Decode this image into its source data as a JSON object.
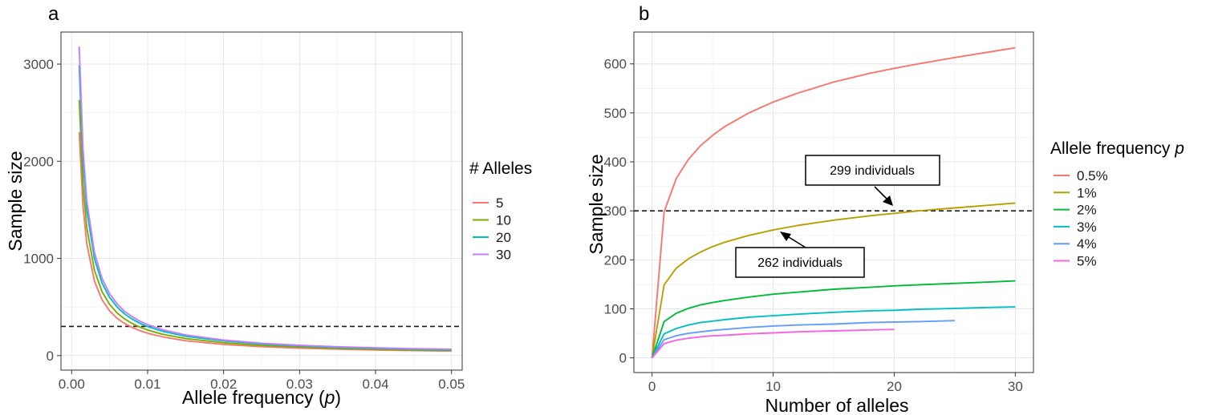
{
  "colors": {
    "a": {
      "5": "#F8766D",
      "10": "#7CAE00",
      "20": "#00BFC4",
      "30": "#C77CFF"
    },
    "b": [
      "#F8766D",
      "#B79F00",
      "#00BA38",
      "#00BFC4",
      "#619CFF",
      "#F564E3"
    ]
  },
  "chart_data": [
    {
      "panel": "a",
      "type": "line",
      "title": "",
      "xlabel": "Allele frequency (p)",
      "ylabel": "Sample size",
      "xlim": [
        -0.0014,
        0.0514
      ],
      "ylim": [
        -150,
        3330
      ],
      "xticks": [
        0.0,
        0.01,
        0.02,
        0.03,
        0.04,
        0.05
      ],
      "xtick_labels": [
        "0.00",
        "0.01",
        "0.02",
        "0.03",
        "0.04",
        "0.05"
      ],
      "yticks": [
        0,
        1000,
        2000,
        3000
      ],
      "ytick_labels": [
        "0",
        "1000",
        "2000",
        "3000"
      ],
      "hline": 300,
      "legend": {
        "title": "# Alleles",
        "position": "right",
        "entries": [
          "5",
          "10",
          "20",
          "30"
        ]
      },
      "x": [
        0.001,
        0.0015,
        0.002,
        0.003,
        0.004,
        0.005,
        0.006,
        0.007,
        0.008,
        0.009,
        0.01,
        0.012,
        0.015,
        0.02,
        0.025,
        0.03,
        0.035,
        0.04,
        0.045,
        0.05
      ],
      "series": [
        {
          "name": "5",
          "values": [
            2300,
            1533,
            1150,
            767,
            575,
            460,
            383,
            329,
            288,
            256,
            230,
            192,
            153,
            115,
            92,
            77,
            66,
            58,
            51,
            46
          ]
        },
        {
          "name": "10",
          "values": [
            2630,
            1753,
            1315,
            877,
            658,
            526,
            438,
            376,
            329,
            292,
            263,
            219,
            175,
            132,
            105,
            88,
            75,
            66,
            58,
            53
          ]
        },
        {
          "name": "20",
          "values": [
            2990,
            1993,
            1495,
            997,
            748,
            598,
            498,
            427,
            374,
            332,
            299,
            249,
            199,
            150,
            120,
            100,
            85,
            75,
            66,
            60
          ]
        },
        {
          "name": "30",
          "values": [
            3180,
            2120,
            1590,
            1060,
            795,
            636,
            530,
            454,
            398,
            353,
            318,
            265,
            212,
            159,
            127,
            106,
            91,
            80,
            71,
            64
          ]
        }
      ]
    },
    {
      "panel": "b",
      "type": "line",
      "title": "",
      "xlabel": "Number of alleles",
      "ylabel": "Sample size",
      "xlim": [
        -1.5,
        31.5
      ],
      "ylim": [
        -30,
        665
      ],
      "xticks": [
        0,
        10,
        20,
        30
      ],
      "xtick_labels": [
        "0",
        "10",
        "20",
        "30"
      ],
      "yticks": [
        0,
        100,
        200,
        300,
        400,
        500,
        600
      ],
      "ytick_labels": [
        "0",
        "100",
        "200",
        "300",
        "400",
        "500",
        "600"
      ],
      "hline": 300,
      "legend": {
        "title": "Allele frequency p",
        "position": "right",
        "entries": [
          "0.5%",
          "1%",
          "2%",
          "3%",
          "4%",
          "5%"
        ]
      },
      "annotations": [
        {
          "text": "299 individuals",
          "points_to": [
            21,
            299
          ]
        },
        {
          "text": "262 individuals",
          "points_to": [
            10,
            262
          ]
        }
      ],
      "series": [
        {
          "name": "0.5%",
          "x": [
            0,
            1,
            2,
            3,
            4,
            5,
            6,
            8,
            10,
            12,
            15,
            18,
            20,
            22,
            25,
            28,
            30
          ],
          "values": [
            0,
            298,
            366,
            405,
            433,
            454,
            472,
            500,
            522,
            540,
            563,
            581,
            591,
            600,
            613,
            625,
            633
          ]
        },
        {
          "name": "1%",
          "x": [
            0,
            1,
            2,
            3,
            4,
            5,
            6,
            8,
            10,
            12,
            15,
            18,
            20,
            22,
            25,
            28,
            30
          ],
          "values": [
            0,
            149,
            183,
            202,
            216,
            227,
            236,
            250,
            261,
            270,
            281,
            290,
            295,
            300,
            306,
            312,
            316
          ]
        },
        {
          "name": "2%",
          "x": [
            0,
            1,
            2,
            3,
            4,
            5,
            6,
            8,
            10,
            12,
            15,
            18,
            20,
            22,
            25,
            28,
            30
          ],
          "values": [
            0,
            74,
            91,
            101,
            108,
            113,
            117,
            124,
            130,
            134,
            140,
            144,
            147,
            149,
            152,
            155,
            157
          ]
        },
        {
          "name": "3%",
          "x": [
            0,
            1,
            2,
            3,
            4,
            5,
            6,
            8,
            10,
            12,
            15,
            18,
            20,
            22,
            25,
            28,
            30
          ],
          "values": [
            0,
            49,
            60,
            67,
            72,
            75,
            78,
            83,
            86,
            89,
            93,
            96,
            97,
            99,
            101,
            103,
            104
          ]
        },
        {
          "name": "4%",
          "x": [
            0,
            1,
            2,
            3,
            4,
            5,
            6,
            8,
            10,
            12,
            15,
            18,
            20,
            22,
            25
          ],
          "values": [
            0,
            37,
            45,
            50,
            53,
            56,
            58,
            62,
            65,
            67,
            69,
            72,
            73,
            74,
            76
          ]
        },
        {
          "name": "5%",
          "x": [
            0,
            1,
            2,
            3,
            4,
            5,
            6,
            8,
            10,
            12,
            15,
            18,
            20
          ],
          "values": [
            0,
            29,
            36,
            40,
            43,
            45,
            46,
            49,
            51,
            53,
            55,
            57,
            58
          ]
        }
      ]
    }
  ]
}
